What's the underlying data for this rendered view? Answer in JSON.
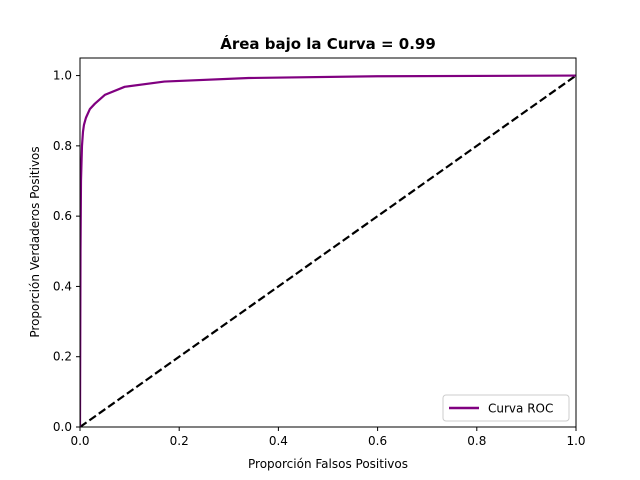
{
  "chart_data": {
    "type": "line",
    "title": "Área bajo la Curva = 0.99",
    "xlabel": "Proporción Falsos Positivos",
    "ylabel": "Proporción Verdaderos Positivos",
    "xlim": [
      0.0,
      1.0
    ],
    "ylim": [
      0.0,
      1.05
    ],
    "xticks": [
      0.0,
      0.2,
      0.4,
      0.6,
      0.8,
      1.0
    ],
    "xtick_labels": [
      "0.0",
      "0.2",
      "0.4",
      "0.6",
      "0.8",
      "1.0"
    ],
    "yticks": [
      0.0,
      0.2,
      0.4,
      0.6,
      0.8,
      1.0
    ],
    "ytick_labels": [
      "0.0",
      "0.2",
      "0.4",
      "0.6",
      "0.8",
      "1.0"
    ],
    "grid": false,
    "legend_position": "lower-right",
    "series": [
      {
        "name": "Curva ROC",
        "color": "#800080",
        "style": "solid",
        "x": [
          0.0,
          0.001,
          0.002,
          0.004,
          0.006,
          0.008,
          0.012,
          0.02,
          0.03,
          0.05,
          0.09,
          0.17,
          0.34,
          0.6,
          1.0
        ],
        "y": [
          0.0,
          0.5,
          0.7,
          0.8,
          0.84,
          0.86,
          0.88,
          0.905,
          0.92,
          0.945,
          0.968,
          0.983,
          0.993,
          0.998,
          1.0
        ]
      },
      {
        "color": "#000000",
        "style": "dashed",
        "x": [
          0.0,
          1.0
        ],
        "y": [
          0.0,
          1.0
        ]
      }
    ]
  }
}
